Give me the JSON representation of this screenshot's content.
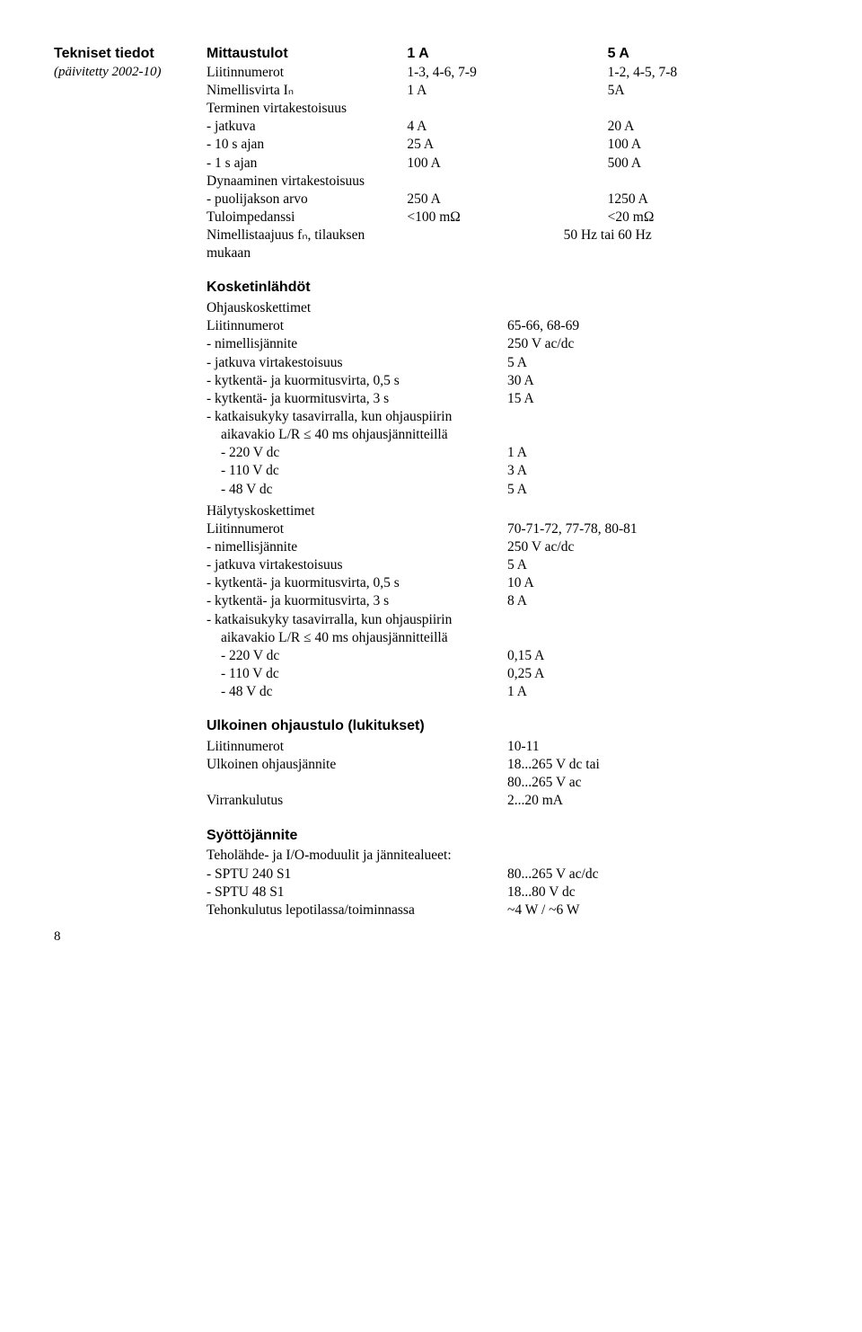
{
  "leftTitle": "Tekniset tiedot",
  "leftSub": "(päivitetty 2002-10)",
  "pageNum": "8",
  "mittaustulot": {
    "heading": "Mittaustulot",
    "col1": "1 A",
    "col2": "5 A",
    "rows": [
      {
        "label": "Liitinnumerot",
        "v1": "1-3, 4-6, 7-9",
        "v2": "1-2, 4-5, 7-8"
      },
      {
        "label": "Nimellisvirta Iₙ",
        "v1": "1 A",
        "v2": "5A"
      },
      {
        "label": "Terminen virtakestoisuus",
        "v1": "",
        "v2": ""
      },
      {
        "label": "- jatkuva",
        "v1": "4 A",
        "v2": "20 A"
      },
      {
        "label": "- 10 s ajan",
        "v1": "25 A",
        "v2": "100 A"
      },
      {
        "label": "- 1 s ajan",
        "v1": "100 A",
        "v2": "500 A"
      },
      {
        "label": "Dynaaminen virtakestoisuus",
        "v1": "",
        "v2": ""
      },
      {
        "label": "- puolijakson arvo",
        "v1": "250 A",
        "v2": "1250 A"
      },
      {
        "label": "Tuloimpedanssi",
        "v1": "<100 mΩ",
        "v2": "<20 mΩ"
      },
      {
        "label": "Nimellistaajuus fₙ, tilauksen mukaan",
        "v1": "",
        "v2": "50 Hz tai 60 Hz",
        "span": true
      }
    ]
  },
  "kosketin": {
    "heading": "Kosketinlähdöt",
    "sub1": "Ohjauskoskettimet",
    "rows1": [
      {
        "label": "Liitinnumerot",
        "val": "65-66, 68-69"
      },
      {
        "label": "- nimellisjännite",
        "val": "250 V ac/dc"
      },
      {
        "label": "- jatkuva virtakestoisuus",
        "val": "5 A"
      },
      {
        "label": "- kytkentä- ja kuormitusvirta, 0,5 s",
        "val": "30 A"
      },
      {
        "label": "- kytkentä- ja kuormitusvirta, 3 s",
        "val": "15 A"
      },
      {
        "label": "- katkaisukyky tasavirralla, kun ohjauspiirin",
        "val": ""
      },
      {
        "label": "aikavakio L/R ≤ 40 ms ohjausjännitteillä",
        "val": "",
        "indent": true
      },
      {
        "label": "- 220 V dc",
        "val": "1 A",
        "indent": true
      },
      {
        "label": "- 110 V dc",
        "val": "3 A",
        "indent": true
      },
      {
        "label": "-  48 V dc",
        "val": "5 A",
        "indent": true
      }
    ],
    "sub2": "Hälytyskoskettimet",
    "rows2": [
      {
        "label": "Liitinnumerot",
        "val": "70-71-72, 77-78, 80-81"
      },
      {
        "label": "- nimellisjännite",
        "val": "250 V ac/dc"
      },
      {
        "label": "- jatkuva virtakestoisuus",
        "val": "5 A"
      },
      {
        "label": "- kytkentä- ja kuormitusvirta, 0,5 s",
        "val": "10 A"
      },
      {
        "label": "- kytkentä- ja kuormitusvirta, 3 s",
        "val": "8 A"
      },
      {
        "label": "- katkaisukyky tasavirralla, kun ohjauspiirin",
        "val": ""
      },
      {
        "label": "aikavakio L/R ≤ 40 ms ohjausjännitteillä",
        "val": "",
        "indent": true
      },
      {
        "label": "- 220 V dc",
        "val": "0,15 A",
        "indent": true
      },
      {
        "label": "- 110 V dc",
        "val": "0,25 A",
        "indent": true
      },
      {
        "label": "-  48 V dc",
        "val": "1 A",
        "indent": true
      }
    ]
  },
  "ulkoinen": {
    "heading": "Ulkoinen ohjaustulo (lukitukset)",
    "rows": [
      {
        "label": "Liitinnumerot",
        "val": "10-11"
      },
      {
        "label": "Ulkoinen ohjausjännite",
        "val": "18...265 V dc tai"
      },
      {
        "label": "",
        "val": "80...265 V ac"
      },
      {
        "label": "Virrankulutus",
        "val": "2...20 mA"
      }
    ]
  },
  "syotto": {
    "heading": "Syöttöjännite",
    "rows": [
      {
        "label": "Teholähde- ja I/O-moduulit ja jännitealueet:",
        "val": ""
      },
      {
        "label": "- SPTU 240 S1",
        "val": "80...265 V ac/dc"
      },
      {
        "label": "- SPTU 48 S1",
        "val": "18...80 V dc"
      },
      {
        "label": "Tehonkulutus lepotilassa/toiminnassa",
        "val": "~4 W / ~6 W"
      }
    ]
  }
}
